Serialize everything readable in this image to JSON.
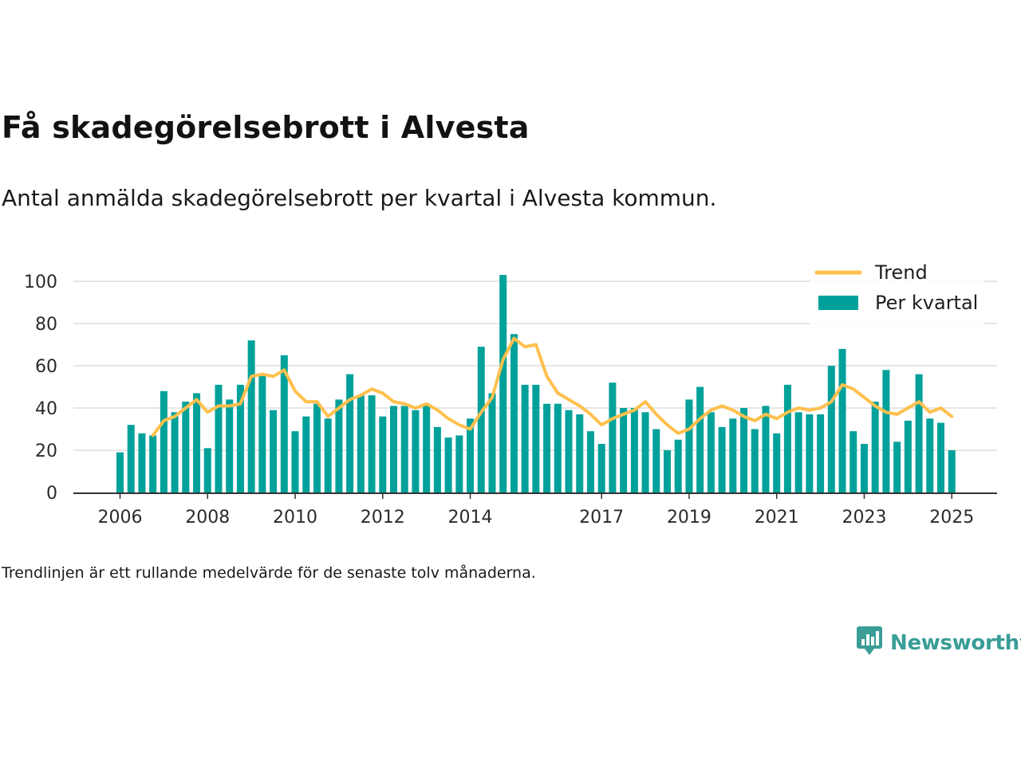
{
  "title": "Få skadegörelsebrott i Alvesta",
  "subtitle": "Antal anmälda skadegörelsebrott per kvartal i Alvesta kommun.",
  "note": "Trendlinjen är ett rullande medelvärde för de senaste tolv månaderna.",
  "brand": {
    "name": "Newsworthy",
    "icon": "newsworthy-logo-icon"
  },
  "colors": {
    "bar": "#00a19a",
    "trend": "#ffc04d",
    "grid": "#dddddd",
    "axis": "#333333",
    "brand": "#3a9d97"
  },
  "chart_data": {
    "type": "bar",
    "x_start_year": 2006,
    "y_ticks": [
      0,
      20,
      40,
      60,
      80,
      100
    ],
    "ylim": [
      0,
      100
    ],
    "grid": true,
    "legend_position": "top-right",
    "x_tick_labels": [
      "2006",
      "2008",
      "2010",
      "2012",
      "2014",
      "2017",
      "2019",
      "2021",
      "2023",
      "2025"
    ],
    "x_tick_quarters": [
      0,
      8,
      16,
      24,
      32,
      44,
      52,
      60,
      68,
      76
    ],
    "series": [
      {
        "name": "Per kvartal",
        "kind": "bar",
        "values": [
          19,
          32,
          28,
          27,
          48,
          38,
          43,
          47,
          21,
          51,
          44,
          51,
          72,
          56,
          39,
          65,
          29,
          36,
          42,
          35,
          44,
          56,
          46,
          46,
          36,
          41,
          41,
          39,
          42,
          31,
          26,
          27,
          35,
          69,
          47,
          103,
          75,
          51,
          51,
          42,
          42,
          39,
          37,
          29,
          23,
          52,
          40,
          40,
          38,
          30,
          20,
          25,
          44,
          50,
          38,
          31,
          35,
          40,
          30,
          41,
          28,
          51,
          38,
          37,
          37,
          60,
          68,
          29,
          23,
          43,
          58,
          24,
          34,
          56,
          35,
          33,
          20
        ]
      },
      {
        "name": "Trend",
        "kind": "line",
        "start_quarter": 3,
        "values": [
          27,
          34,
          36,
          40,
          44,
          38,
          41,
          41,
          42,
          55,
          56,
          55,
          58,
          48,
          43,
          43,
          36,
          40,
          44,
          46,
          49,
          47,
          43,
          42,
          40,
          42,
          39,
          35,
          32,
          30,
          38,
          45,
          63,
          73,
          69,
          70,
          55,
          47,
          44,
          41,
          37,
          32,
          35,
          37,
          39,
          43,
          37,
          32,
          28,
          30,
          35,
          39,
          41,
          39,
          36,
          34,
          37,
          35,
          38,
          40,
          39,
          40,
          43,
          51,
          49,
          45,
          41,
          38,
          37,
          40,
          43,
          38,
          40,
          36
        ]
      }
    ]
  }
}
